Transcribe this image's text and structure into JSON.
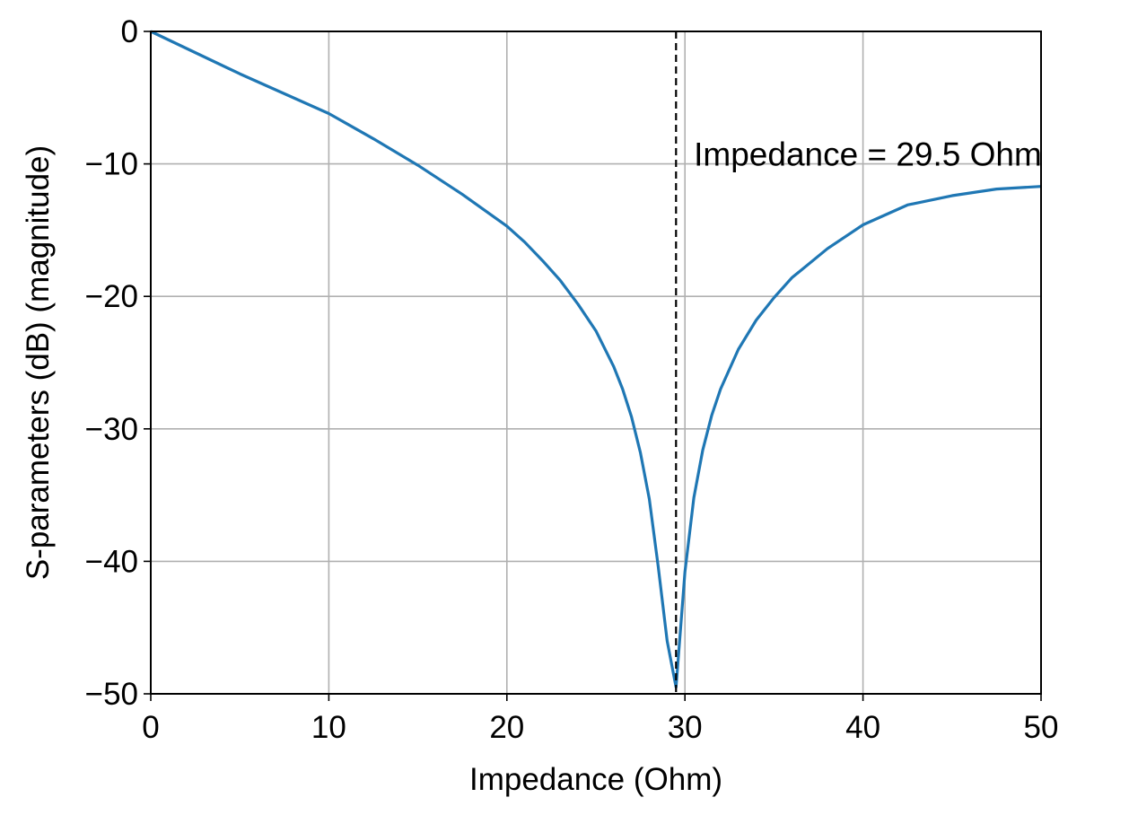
{
  "chart_data": {
    "type": "line",
    "title": "",
    "xlabel": "Impedance (Ohm)",
    "ylabel": "S-parameters (dB) (magnitude)",
    "xlim": [
      0,
      50
    ],
    "ylim": [
      -50,
      0
    ],
    "grid": true,
    "x_ticks": [
      0,
      10,
      20,
      30,
      40,
      50
    ],
    "x_tick_labels": [
      "0",
      "10",
      "20",
      "30",
      "40",
      "50"
    ],
    "y_ticks": [
      0,
      -10,
      -20,
      -30,
      -40,
      -50
    ],
    "y_tick_labels": [
      "0",
      "−10",
      "−20",
      "−30",
      "−40",
      "−50"
    ],
    "series": [
      {
        "color": "#1f77b4",
        "x": [
          0,
          2.5,
          5,
          7.5,
          10,
          12.5,
          15,
          17.5,
          20,
          21,
          22,
          23,
          24,
          25,
          26,
          26.5,
          27,
          27.5,
          28,
          28.5,
          29,
          29.5,
          30,
          30.5,
          31,
          31.5,
          32,
          33,
          34,
          35,
          36,
          38,
          40,
          42.5,
          45,
          47.5,
          50
        ],
        "y": [
          0,
          -1.6,
          -3.2,
          -4.7,
          -6.2,
          -8.1,
          -10.1,
          -12.3,
          -14.7,
          -15.9,
          -17.3,
          -18.8,
          -20.6,
          -22.6,
          -25.3,
          -27.0,
          -29.1,
          -31.8,
          -35.3,
          -40.4,
          -46.0,
          -49.5,
          -40.8,
          -35.2,
          -31.6,
          -29.0,
          -27.0,
          -24.0,
          -21.8,
          -20.1,
          -18.6,
          -16.4,
          -14.6,
          -13.1,
          -12.4,
          -11.9,
          -11.7
        ]
      }
    ],
    "vline": {
      "x": 29.5,
      "style": "dashed",
      "color": "#000000"
    },
    "annotation": {
      "text": "Impedance = 29.5 Ohm",
      "x": 30.5,
      "y": -10
    }
  }
}
